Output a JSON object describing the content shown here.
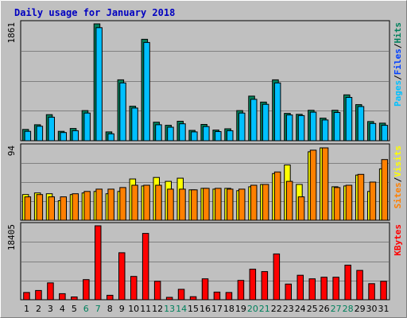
{
  "chart_data": {
    "type": "bar",
    "title": "Daily usage for January 2018",
    "categories": [
      "1",
      "2",
      "3",
      "4",
      "5",
      "6",
      "7",
      "8",
      "9",
      "10",
      "11",
      "12",
      "13",
      "14",
      "15",
      "16",
      "17",
      "18",
      "19",
      "20",
      "21",
      "22",
      "23",
      "24",
      "25",
      "26",
      "27",
      "28",
      "29",
      "30",
      "31"
    ],
    "weekend_days": [
      "6",
      "7",
      "13",
      "14",
      "20",
      "21",
      "27",
      "28"
    ],
    "panels": [
      {
        "name": "hits-files-pages",
        "ymax_label": "1861",
        "ylim": [
          0,
          1861
        ],
        "legend": [
          {
            "label": "Pages",
            "color": "#00C0FF"
          },
          {
            "label": "/",
            "color": "#000000"
          },
          {
            "label": "Files",
            "color": "#0040FF"
          },
          {
            "label": "/",
            "color": "#000000"
          },
          {
            "label": "Hits",
            "color": "#00805C"
          }
        ],
        "series": [
          {
            "name": "Hits",
            "color": "#00805C",
            "values": [
              180,
              255,
              415,
              150,
              195,
              480,
              1861,
              140,
              970,
              550,
              1615,
              295,
              245,
              310,
              165,
              260,
              170,
              190,
              480,
              710,
              615,
              970,
              435,
              420,
              485,
              360,
              485,
              730,
              575,
              305,
              280
            ]
          },
          {
            "name": "Files",
            "color": "#00C0FF",
            "values": [
              150,
              230,
              375,
              130,
              160,
              440,
              1800,
              110,
              920,
              520,
              1565,
              255,
              215,
              270,
              140,
              225,
              145,
              160,
              440,
              660,
              580,
              920,
              410,
              400,
              455,
              330,
              450,
              690,
              545,
              275,
              245
            ]
          }
        ]
      },
      {
        "name": "visits-sites",
        "ymax_label": "94",
        "ylim": [
          0,
          94
        ],
        "legend": [
          {
            "label": "Sites",
            "color": "#FF8000"
          },
          {
            "label": "/",
            "color": "#000000"
          },
          {
            "label": "Visits",
            "color": "#FFFF00"
          }
        ],
        "series": [
          {
            "name": "Visits",
            "color": "#FFFF00",
            "values": [
              33,
              35,
              34,
              25,
              33,
              35,
              37,
              34,
              37,
              53,
              44,
              55,
              50,
              54,
              39,
              41,
              40,
              41,
              38,
              43,
              46,
              60,
              71,
              46,
              88,
              93,
              43,
              44,
              58,
              37,
              66
            ]
          },
          {
            "name": "Sites",
            "color": "#FF8000",
            "values": [
              30,
              33,
              30,
              30,
              34,
              37,
              40,
              40,
              42,
              45,
              45,
              45,
              40,
              40,
              39,
              41,
              41,
              40,
              40,
              45,
              46,
              62,
              50,
              30,
              90,
              93,
              42,
              45,
              59,
              49,
              78
            ]
          }
        ]
      },
      {
        "name": "kbytes",
        "ymax_label": "18405",
        "ylim": [
          0,
          18405
        ],
        "legend": [
          {
            "label": "KBytes",
            "color": "#FF0000"
          }
        ],
        "series": [
          {
            "name": "KBytes",
            "color": "#FF0000",
            "values": [
              1800,
              2300,
              4200,
              1500,
              700,
              5000,
              18405,
              1100,
              11700,
              5800,
              16500,
              4600,
              600,
              2600,
              760,
              5200,
              1900,
              1800,
              4800,
              7600,
              7000,
              11400,
              3900,
              6100,
              5200,
              5600,
              5600,
              8600,
              7300,
              4000,
              4600
            ]
          }
        ]
      }
    ]
  }
}
